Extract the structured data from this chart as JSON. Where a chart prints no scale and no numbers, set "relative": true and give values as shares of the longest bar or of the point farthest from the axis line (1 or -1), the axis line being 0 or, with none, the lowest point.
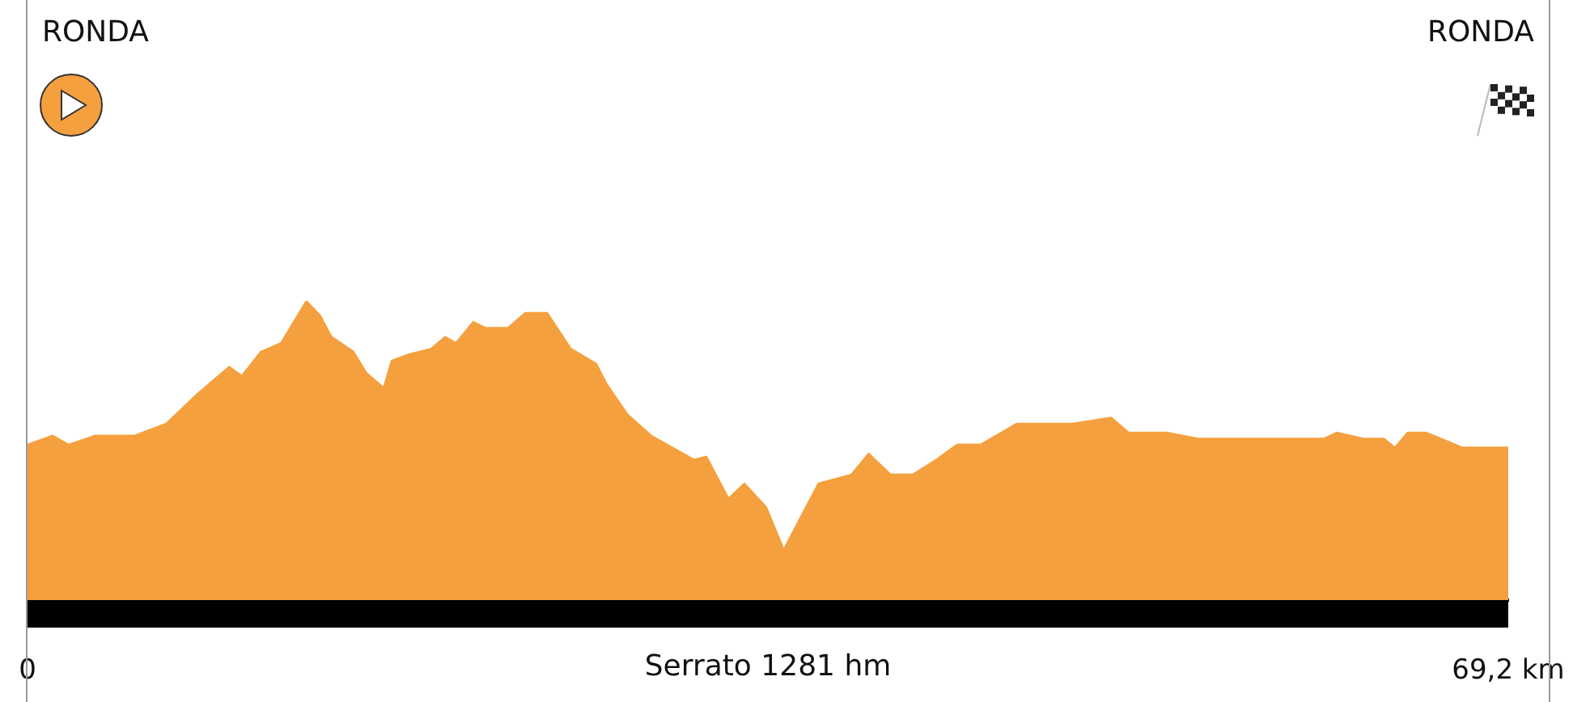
{
  "chart_data": {
    "type": "area",
    "relative": true,
    "x": [
      0,
      1.18,
      1.91,
      3.17,
      5.01,
      6.48,
      7.95,
      9.42,
      10.01,
      10.9,
      11.85,
      13.03,
      13.69,
      14.21,
      15.24,
      15.83,
      16.64,
      17.01,
      17.74,
      18.85,
      19.51,
      20.02,
      20.83,
      21.42,
      22.45,
      23.26,
      24.29,
      25.4,
      26.58,
      27.09,
      28.05,
      29.15,
      31.14,
      31.73,
      32.76,
      33.5,
      34.53,
      35.34,
      36.96,
      38.5,
      39.31,
      40.34,
      41.37,
      42.48,
      43.44,
      44.54,
      46.23,
      48.81,
      50.65,
      51.46,
      53.23,
      54.7,
      60.59,
      61.18,
      62.43,
      63.39,
      63.9,
      64.49,
      65.37,
      67.07,
      69.2
    ],
    "series": [
      {
        "color": "#f5a03e",
        "values": [
          0.52,
          0.55,
          0.52,
          0.55,
          0.55,
          0.59,
          0.69,
          0.78,
          0.75,
          0.83,
          0.86,
          1,
          0.95,
          0.88,
          0.83,
          0.76,
          0.71,
          0.8,
          0.82,
          0.84,
          0.88,
          0.86,
          0.93,
          0.91,
          0.91,
          0.96,
          0.96,
          0.84,
          0.79,
          0.72,
          0.62,
          0.55,
          0.47,
          0.48,
          0.34,
          0.39,
          0.31,
          0.17,
          0.39,
          0.42,
          0.49,
          0.42,
          0.42,
          0.47,
          0.52,
          0.52,
          0.59,
          0.59,
          0.61,
          0.56,
          0.56,
          0.54,
          0.54,
          0.56,
          0.54,
          0.54,
          0.51,
          0.56,
          0.56,
          0.51,
          0.51
        ]
      }
    ],
    "xlim": [
      0,
      69.2
    ],
    "xticks": [
      {
        "value": 0,
        "label": "0"
      },
      {
        "value": 69.2,
        "label": "69,2 km"
      }
    ],
    "annotations": [
      "RONDA",
      "RONDA",
      "Serrato 1281 hm"
    ]
  }
}
